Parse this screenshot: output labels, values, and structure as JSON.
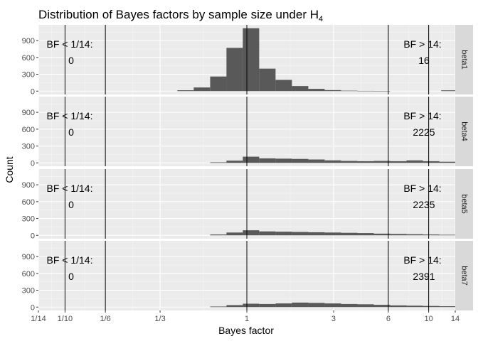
{
  "chart_data": {
    "type": "histogram",
    "title_text": "Distribution of Bayes factors by sample size under H",
    "title_subscript": "4",
    "xlabel": "Bayes factor",
    "ylabel": "Count",
    "x_scale": "log",
    "x_range": [
      0.0714,
      14
    ],
    "x_ticks": [
      {
        "value": 0.0714,
        "label": "1/14"
      },
      {
        "value": 0.1,
        "label": "1/10"
      },
      {
        "value": 0.1667,
        "label": "1/6"
      },
      {
        "value": 0.3333,
        "label": "1/3"
      },
      {
        "value": 1,
        "label": "1"
      },
      {
        "value": 3,
        "label": "3"
      },
      {
        "value": 6,
        "label": "6"
      },
      {
        "value": 10,
        "label": "10"
      },
      {
        "value": 14,
        "label": "14"
      }
    ],
    "vlines": [
      0.1,
      0.1667,
      1,
      6,
      10
    ],
    "y_range": [
      -60,
      1180
    ],
    "y_ticks": [
      0,
      300,
      600,
      900
    ],
    "bin_log_width": 0.09,
    "left_label": "BF < 1/14:",
    "right_label": "BF > 14:",
    "grid": true,
    "panels": [
      {
        "strip": "beta1",
        "count_left": "0",
        "count_right": "16",
        "bins": [
          {
            "center": 0.46,
            "count": 15
          },
          {
            "center": 0.566,
            "count": 65
          },
          {
            "center": 0.697,
            "count": 260
          },
          {
            "center": 0.857,
            "count": 770
          },
          {
            "center": 1.054,
            "count": 1120
          },
          {
            "center": 1.297,
            "count": 400
          },
          {
            "center": 1.596,
            "count": 200
          },
          {
            "center": 1.964,
            "count": 90
          },
          {
            "center": 2.416,
            "count": 40
          },
          {
            "center": 2.973,
            "count": 18
          },
          {
            "center": 3.658,
            "count": 8
          },
          {
            "center": 4.5,
            "count": 4
          },
          {
            "center": 5.536,
            "count": 2
          },
          {
            "center": 13.0,
            "count": 14
          }
        ]
      },
      {
        "strip": "beta4",
        "count_left": "0",
        "count_right": "2225",
        "bins": [
          {
            "center": 0.697,
            "count": 10
          },
          {
            "center": 0.857,
            "count": 40
          },
          {
            "center": 1.054,
            "count": 110
          },
          {
            "center": 1.297,
            "count": 80
          },
          {
            "center": 1.596,
            "count": 75
          },
          {
            "center": 1.964,
            "count": 70
          },
          {
            "center": 2.416,
            "count": 60
          },
          {
            "center": 2.973,
            "count": 45
          },
          {
            "center": 3.658,
            "count": 35
          },
          {
            "center": 4.5,
            "count": 30
          },
          {
            "center": 5.536,
            "count": 35
          },
          {
            "center": 6.81,
            "count": 30
          },
          {
            "center": 8.38,
            "count": 45
          },
          {
            "center": 10.31,
            "count": 30
          },
          {
            "center": 12.68,
            "count": 20
          }
        ]
      },
      {
        "strip": "beta5",
        "count_left": "0",
        "count_right": "2235",
        "bins": [
          {
            "center": 0.697,
            "count": 15
          },
          {
            "center": 0.857,
            "count": 50
          },
          {
            "center": 1.054,
            "count": 90
          },
          {
            "center": 1.297,
            "count": 70
          },
          {
            "center": 1.596,
            "count": 65
          },
          {
            "center": 1.964,
            "count": 60
          },
          {
            "center": 2.416,
            "count": 55
          },
          {
            "center": 2.973,
            "count": 50
          },
          {
            "center": 3.658,
            "count": 45
          },
          {
            "center": 4.5,
            "count": 40
          },
          {
            "center": 5.536,
            "count": 30
          },
          {
            "center": 6.81,
            "count": 25
          },
          {
            "center": 8.38,
            "count": 20
          },
          {
            "center": 10.31,
            "count": 15
          },
          {
            "center": 12.68,
            "count": 10
          }
        ]
      },
      {
        "strip": "beta7",
        "count_left": "0",
        "count_right": "2391",
        "bins": [
          {
            "center": 0.697,
            "count": 10
          },
          {
            "center": 0.857,
            "count": 35
          },
          {
            "center": 1.054,
            "count": 60
          },
          {
            "center": 1.297,
            "count": 55
          },
          {
            "center": 1.596,
            "count": 65
          },
          {
            "center": 1.964,
            "count": 80
          },
          {
            "center": 2.416,
            "count": 75
          },
          {
            "center": 2.973,
            "count": 65
          },
          {
            "center": 3.658,
            "count": 55
          },
          {
            "center": 4.5,
            "count": 50
          },
          {
            "center": 5.536,
            "count": 40
          },
          {
            "center": 6.81,
            "count": 30
          },
          {
            "center": 8.38,
            "count": 25
          },
          {
            "center": 10.31,
            "count": 20
          },
          {
            "center": 12.68,
            "count": 15
          }
        ]
      }
    ],
    "colors": {
      "panel_bg": "#ebebeb",
      "grid_major": "#ffffff",
      "grid_minor": "#f5f5f5",
      "bar_fill": "#595959",
      "strip_bg": "#d9d9d9",
      "vline": "#000000"
    }
  }
}
